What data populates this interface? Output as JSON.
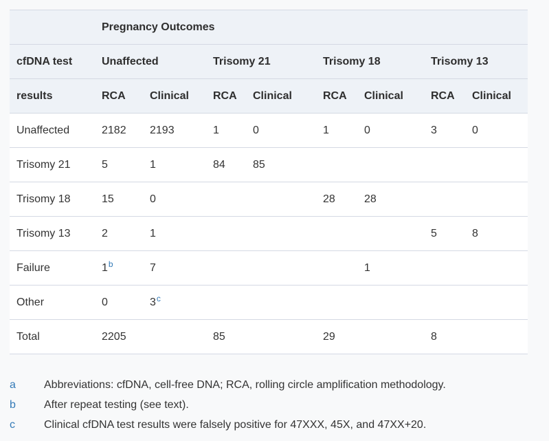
{
  "table": {
    "title": "Pregnancy Outcomes",
    "row_header_line1": "cfDNA test",
    "row_header_line2": "results",
    "groups": [
      "Unaffected",
      "Trisomy 21",
      "Trisomy 18",
      "Trisomy 13"
    ],
    "subheaders": [
      "RCA",
      "Clinical",
      "RCA",
      "Clinical",
      "RCA",
      "Clinical",
      "RCA",
      "Clinical"
    ],
    "rows": [
      {
        "label": "Unaffected",
        "cells": [
          {
            "v": "2182"
          },
          {
            "v": "2193"
          },
          {
            "v": "1"
          },
          {
            "v": "0"
          },
          {
            "v": "1"
          },
          {
            "v": "0"
          },
          {
            "v": "3"
          },
          {
            "v": "0"
          }
        ]
      },
      {
        "label": "Trisomy 21",
        "cells": [
          {
            "v": "5"
          },
          {
            "v": "1"
          },
          {
            "v": "84"
          },
          {
            "v": "85"
          },
          {},
          {},
          {},
          {}
        ]
      },
      {
        "label": "Trisomy 18",
        "cells": [
          {
            "v": "15"
          },
          {
            "v": "0"
          },
          {},
          {},
          {
            "v": "28"
          },
          {
            "v": "28"
          },
          {},
          {}
        ]
      },
      {
        "label": "Trisomy 13",
        "cells": [
          {
            "v": "2"
          },
          {
            "v": "1"
          },
          {},
          {},
          {},
          {},
          {
            "v": "5"
          },
          {
            "v": "8"
          }
        ]
      },
      {
        "label": "Failure",
        "cells": [
          {
            "v": "1",
            "s": "b"
          },
          {
            "v": "7"
          },
          {},
          {},
          {},
          {
            "v": "1"
          },
          {},
          {}
        ]
      },
      {
        "label": "Other",
        "cells": [
          {
            "v": "0"
          },
          {
            "v": "3",
            "s": "c"
          },
          {},
          {},
          {},
          {},
          {},
          {}
        ]
      },
      {
        "label": "Total",
        "cells": [
          {
            "v": "2205"
          },
          {},
          {
            "v": "85"
          },
          {},
          {
            "v": "29"
          },
          {},
          {
            "v": "8"
          },
          {}
        ]
      }
    ]
  },
  "footnotes": [
    {
      "marker": "a",
      "text": "Abbreviations: cfDNA, cell-free DNA; RCA, rolling circle amplification methodology."
    },
    {
      "marker": "b",
      "text": "After repeat testing (see text)."
    },
    {
      "marker": "c",
      "text": "Clinical cfDNA test results were falsely positive for 47XXX, 45X, and 47XX+20."
    }
  ],
  "colors": {
    "accent_blue": "#337ab7",
    "header_bg": "#eef2f7",
    "border": "#d4d9e3",
    "page_bg": "#f8f9fa"
  }
}
